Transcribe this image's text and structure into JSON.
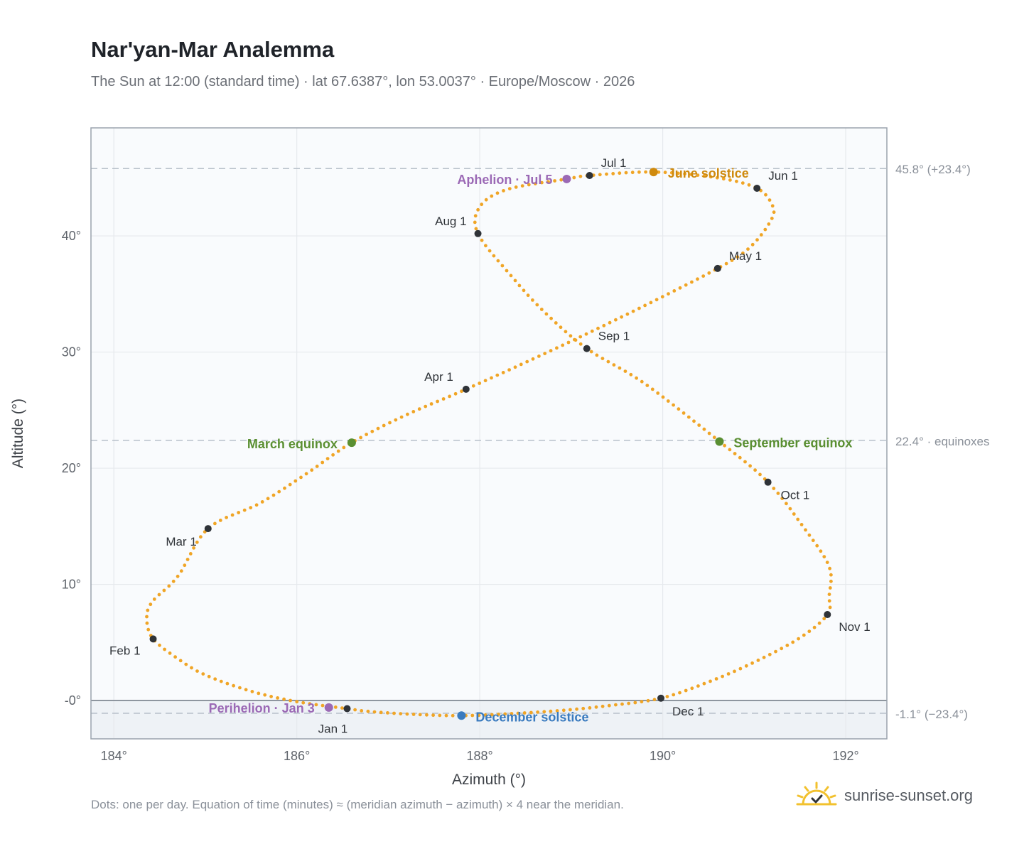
{
  "header": {
    "title": "Nar'yan-Mar Analemma",
    "subtitle": "The Sun at 12:00 (standard time) · lat 67.6387°, lon 53.0037° · Europe/Moscow · 2026"
  },
  "footer": {
    "note": "Dots: one per day. Equation of time (minutes) ≈ (meridian azimuth − azimuth) × 4 near the meridian.",
    "brand": "sunrise-sunset.org"
  },
  "colors": {
    "curve": "#f0a526",
    "month_dot": "#2f3338",
    "equinox": "#5a8f32",
    "june_solstice": "#cf8a0e",
    "december_solstice": "#3a7bbf",
    "apsis": "#9b69b5",
    "plot_bg": "#f9fbfd",
    "below_horizon": "#eef2f6"
  },
  "chart_data": {
    "type": "scatter",
    "title": "Nar'yan-Mar Analemma",
    "xlabel": "Azimuth (°)",
    "ylabel": "Altitude (°)",
    "xlim": [
      183.75,
      192.45
    ],
    "ylim": [
      -3.3,
      49.3
    ],
    "x_ticks": [
      184,
      186,
      188,
      190,
      192
    ],
    "x_tick_labels": [
      "184°",
      "186°",
      "188°",
      "190°",
      "192°"
    ],
    "y_ticks": [
      0,
      10,
      20,
      30,
      40
    ],
    "y_tick_labels": [
      "-0°",
      "10°",
      "20°",
      "30°",
      "40°"
    ],
    "grid": true,
    "reference_lines": [
      {
        "altitude": 45.8,
        "label": "45.8° (+23.4°)"
      },
      {
        "altitude": 22.4,
        "label": "22.4° · equinoxes"
      },
      {
        "altitude": -1.1,
        "label": "-1.1° (−23.4°)"
      }
    ],
    "month_markers": [
      {
        "label": "Jan 1",
        "az": 186.55,
        "alt": -0.7
      },
      {
        "label": "Feb 1",
        "az": 184.43,
        "alt": 5.3
      },
      {
        "label": "Mar 1",
        "az": 185.03,
        "alt": 14.8
      },
      {
        "label": "Apr 1",
        "az": 187.85,
        "alt": 26.8
      },
      {
        "label": "May 1",
        "az": 190.6,
        "alt": 37.2
      },
      {
        "label": "Jun 1",
        "az": 191.03,
        "alt": 44.1
      },
      {
        "label": "Jul 1",
        "az": 189.2,
        "alt": 45.2
      },
      {
        "label": "Aug 1",
        "az": 187.98,
        "alt": 40.2
      },
      {
        "label": "Sep 1",
        "az": 189.17,
        "alt": 30.3
      },
      {
        "label": "Oct 1",
        "az": 191.15,
        "alt": 18.8
      },
      {
        "label": "Nov 1",
        "az": 191.8,
        "alt": 7.4
      },
      {
        "label": "Dec 1",
        "az": 189.98,
        "alt": 0.2
      }
    ],
    "events": [
      {
        "label": "March equinox",
        "az": 186.6,
        "alt": 22.2,
        "color": "#5a8f32"
      },
      {
        "label": "September equinox",
        "az": 190.62,
        "alt": 22.3,
        "color": "#5a8f32"
      },
      {
        "label": "June solstice",
        "az": 189.9,
        "alt": 45.5,
        "color": "#cf8a0e"
      },
      {
        "label": "December solstice",
        "az": 187.8,
        "alt": -1.3,
        "color": "#3a7bbf"
      },
      {
        "label": "Aphelion · Jul 5",
        "az": 188.95,
        "alt": 44.9,
        "color": "#9b69b5"
      },
      {
        "label": "Perihelion · Jan 3",
        "az": 186.35,
        "alt": -0.6,
        "color": "#9b69b5"
      }
    ],
    "curve_points": [
      [
        189.98,
        0.2
      ],
      [
        189.4,
        -0.45
      ],
      [
        188.9,
        -0.85
      ],
      [
        188.3,
        -1.15
      ],
      [
        187.8,
        -1.3
      ],
      [
        187.3,
        -1.2
      ],
      [
        186.8,
        -0.95
      ],
      [
        186.55,
        -0.7
      ],
      [
        186.0,
        -0.1
      ],
      [
        185.5,
        0.8
      ],
      [
        185.0,
        2.2
      ],
      [
        184.7,
        3.6
      ],
      [
        184.43,
        5.3
      ],
      [
        184.36,
        7.0
      ],
      [
        184.42,
        8.5
      ],
      [
        184.7,
        10.7
      ],
      [
        185.03,
        14.8
      ],
      [
        185.6,
        17.0
      ],
      [
        186.1,
        19.5
      ],
      [
        186.6,
        22.2
      ],
      [
        187.2,
        24.6
      ],
      [
        187.85,
        26.8
      ],
      [
        188.8,
        30.2
      ],
      [
        189.7,
        33.6
      ],
      [
        190.6,
        37.2
      ],
      [
        190.95,
        39.0
      ],
      [
        191.18,
        41.3
      ],
      [
        191.2,
        42.6
      ],
      [
        191.03,
        44.1
      ],
      [
        190.6,
        45.0
      ],
      [
        189.9,
        45.5
      ],
      [
        189.2,
        45.2
      ],
      [
        188.95,
        44.9
      ],
      [
        188.3,
        44.0
      ],
      [
        188.0,
        42.5
      ],
      [
        187.98,
        40.2
      ],
      [
        188.35,
        36.5
      ],
      [
        188.7,
        33.5
      ],
      [
        189.17,
        30.3
      ],
      [
        189.8,
        27.3
      ],
      [
        190.62,
        22.3
      ],
      [
        191.15,
        18.8
      ],
      [
        191.55,
        14.8
      ],
      [
        191.82,
        11.5
      ],
      [
        191.82,
        9.0
      ],
      [
        191.8,
        7.4
      ],
      [
        191.5,
        5.4
      ],
      [
        191.0,
        3.3
      ],
      [
        190.5,
        1.6
      ],
      [
        189.98,
        0.2
      ]
    ]
  }
}
